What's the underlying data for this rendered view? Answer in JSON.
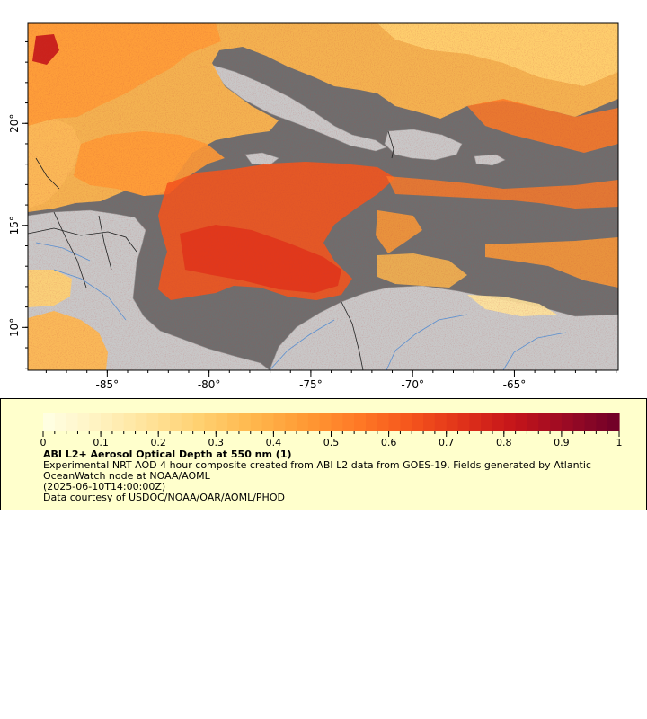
{
  "map": {
    "x_ticks": [
      {
        "value": -85,
        "label": "-85°"
      },
      {
        "value": -80,
        "label": "-80°"
      },
      {
        "value": -75,
        "label": "-75°"
      },
      {
        "value": -70,
        "label": "-70°"
      },
      {
        "value": -65,
        "label": "-65°"
      }
    ],
    "y_ticks": [
      {
        "value": 20,
        "label": "20°"
      },
      {
        "value": 15,
        "label": "15°"
      },
      {
        "value": 10,
        "label": "10°"
      }
    ],
    "lon_range": [
      -88.9,
      -59.9
    ],
    "lat_range": [
      7.9,
      24.9
    ],
    "colors": {
      "land": "#c8c8c8",
      "no_data": "#6e6e6e",
      "rivers": "#5a8fd0",
      "borders": "#222222"
    }
  },
  "legend": {
    "tick_labels": [
      "0",
      "0.1",
      "0.2",
      "0.3",
      "0.4",
      "0.5",
      "0.6",
      "0.7",
      "0.8",
      "0.9",
      "1"
    ],
    "range": [
      0,
      1
    ],
    "title": "ABI L2+ Aerosol Optical Depth at 550 nm (1)",
    "line1": "Experimental NRT AOD 4 hour composite created from ABI L2 data from GOES-19. Fields generated by Atlantic",
    "line2": "OceanWatch node at NOAA/AOML",
    "line3": "(2025-06-10T14:00:00Z)",
    "line4": "Data courtesy of USDOC/NOAA/OAR/AOML/PHOD",
    "colors": [
      "#ffffe5",
      "#fff3c2",
      "#ffe39a",
      "#ffd070",
      "#ffb74d",
      "#ff9a35",
      "#ff7a26",
      "#f5551c",
      "#e0321a",
      "#c4141a",
      "#9a0a24",
      "#6e0028"
    ]
  }
}
